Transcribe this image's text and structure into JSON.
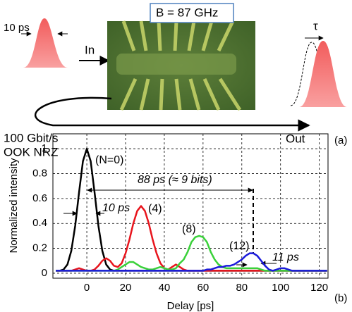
{
  "diagram": {
    "bandwidth_label": "B = 87 GHz",
    "input_pulse_label": "10 ps",
    "in_label": "In",
    "bitrate_label": "100 Gbit/s",
    "format_label": "OOK NRZ",
    "out_label": "Out",
    "delay_symbol": "τ",
    "panel_label": "(a)"
  },
  "chart_data": {
    "type": "line",
    "panel_label": "(b)",
    "x_label": "Delay [ps]",
    "y_label": "Normalized intensity",
    "xlim": [
      -17.5,
      124.5
    ],
    "ylim": [
      -0.04,
      1.12
    ],
    "xticks": [
      0,
      20,
      40,
      60,
      80,
      100,
      120
    ],
    "yticks": [
      0,
      0.2,
      0.4,
      0.6,
      0.8,
      1
    ],
    "grid": true,
    "x": [
      -16,
      -14,
      -12,
      -10,
      -8,
      -6,
      -4,
      -2,
      0,
      2,
      4,
      6,
      8,
      10,
      12,
      14,
      16,
      18,
      20,
      22,
      24,
      26,
      28,
      30,
      32,
      34,
      36,
      38,
      40,
      42,
      44,
      46,
      48,
      50,
      52,
      54,
      56,
      58,
      60,
      62,
      64,
      66,
      68,
      70,
      72,
      74,
      76,
      78,
      80,
      82,
      84,
      86,
      88,
      90,
      92,
      94,
      96,
      98,
      100,
      102,
      104,
      106,
      108,
      110,
      112,
      114,
      116,
      118,
      120,
      122,
      124
    ],
    "series": [
      {
        "name": "(N=0)",
        "color": "#000000",
        "values": [
          0.02,
          0.02,
          0.03,
          0.07,
          0.18,
          0.38,
          0.65,
          0.9,
          1,
          0.9,
          0.65,
          0.38,
          0.18,
          0.07,
          0.03,
          0.02,
          0.02,
          0.02,
          0.02,
          0.02,
          0.02,
          0.02,
          0.02,
          0.02,
          0.02,
          0.02,
          0.02,
          0.02,
          0.02,
          0.02,
          0.02,
          0.02,
          0.02,
          0.02,
          0.02,
          0.02,
          0.02,
          0.02,
          0.02,
          0.02,
          0.02,
          0.02,
          0.02,
          0.02,
          0.02,
          0.02,
          0.02,
          0.02,
          0.02,
          0.02,
          0.02,
          0.02,
          0.02,
          0.02,
          0.02,
          0.02,
          0.02,
          0.02,
          0.02,
          0.02,
          0.02,
          0.02,
          0.02,
          0.02,
          0.02,
          0.02,
          0.02,
          0.02,
          0.02,
          0.02,
          0.02
        ]
      },
      {
        "name": "(4)",
        "color": "#e8141c",
        "values": [
          0.02,
          0.02,
          0.02,
          0.02,
          0.02,
          0.03,
          0.04,
          0.03,
          0.02,
          0.02,
          0.03,
          0.06,
          0.1,
          0.12,
          0.1,
          0.06,
          0.05,
          0.08,
          0.16,
          0.27,
          0.4,
          0.5,
          0.54,
          0.5,
          0.4,
          0.27,
          0.16,
          0.08,
          0.04,
          0.03,
          0.05,
          0.07,
          0.05,
          0.03,
          0.02,
          0.02,
          0.02,
          0.02,
          0.02,
          0.02,
          0.02,
          0.02,
          0.02,
          0.02,
          0.02,
          0.02,
          0.02,
          0.02,
          0.02,
          0.02,
          0.02,
          0.02,
          0.02,
          0.02,
          0.02,
          0.02,
          0.02,
          0.02,
          0.02,
          0.02,
          0.02,
          0.02,
          0.02,
          0.02,
          0.02,
          0.02,
          0.02,
          0.02,
          0.02,
          0.02,
          0.02
        ]
      },
      {
        "name": "(8)",
        "color": "#3ad13a",
        "values": [
          0.02,
          0.02,
          0.02,
          0.02,
          0.02,
          0.02,
          0.02,
          0.02,
          0.02,
          0.02,
          0.02,
          0.02,
          0.02,
          0.02,
          0.02,
          0.02,
          0.03,
          0.05,
          0.07,
          0.09,
          0.09,
          0.07,
          0.05,
          0.04,
          0.03,
          0.03,
          0.04,
          0.05,
          0.04,
          0.03,
          0.03,
          0.04,
          0.08,
          0.11,
          0.17,
          0.25,
          0.29,
          0.3,
          0.29,
          0.25,
          0.17,
          0.11,
          0.07,
          0.05,
          0.04,
          0.04,
          0.04,
          0.04,
          0.04,
          0.04,
          0.04,
          0.04,
          0.04,
          0.03,
          0.02,
          0.02,
          0.02,
          0.02,
          0.02,
          0.02,
          0.02,
          0.02,
          0.02,
          0.02,
          0.02,
          0.02,
          0.02,
          0.02,
          0.02,
          0.02,
          0.02
        ]
      },
      {
        "name": "(12)",
        "color": "#1a1adb",
        "values": [
          0.02,
          0.02,
          0.02,
          0.02,
          0.02,
          0.02,
          0.02,
          0.02,
          0.02,
          0.02,
          0.02,
          0.02,
          0.02,
          0.02,
          0.02,
          0.02,
          0.02,
          0.02,
          0.02,
          0.02,
          0.02,
          0.02,
          0.02,
          0.02,
          0.02,
          0.02,
          0.02,
          0.02,
          0.02,
          0.02,
          0.02,
          0.02,
          0.02,
          0.02,
          0.02,
          0.02,
          0.02,
          0.02,
          0.02,
          0.03,
          0.03,
          0.04,
          0.05,
          0.05,
          0.06,
          0.06,
          0.07,
          0.09,
          0.11,
          0.14,
          0.16,
          0.16,
          0.14,
          0.1,
          0.06,
          0.03,
          0.02,
          0.03,
          0.04,
          0.04,
          0.03,
          0.02,
          0.02,
          0.02,
          0.02,
          0.02,
          0.02,
          0.02,
          0.02,
          0.02,
          0.02
        ]
      }
    ],
    "annotations": [
      "88 ps (≈ 9 bits)",
      "10 ps",
      "11 ps"
    ]
  }
}
